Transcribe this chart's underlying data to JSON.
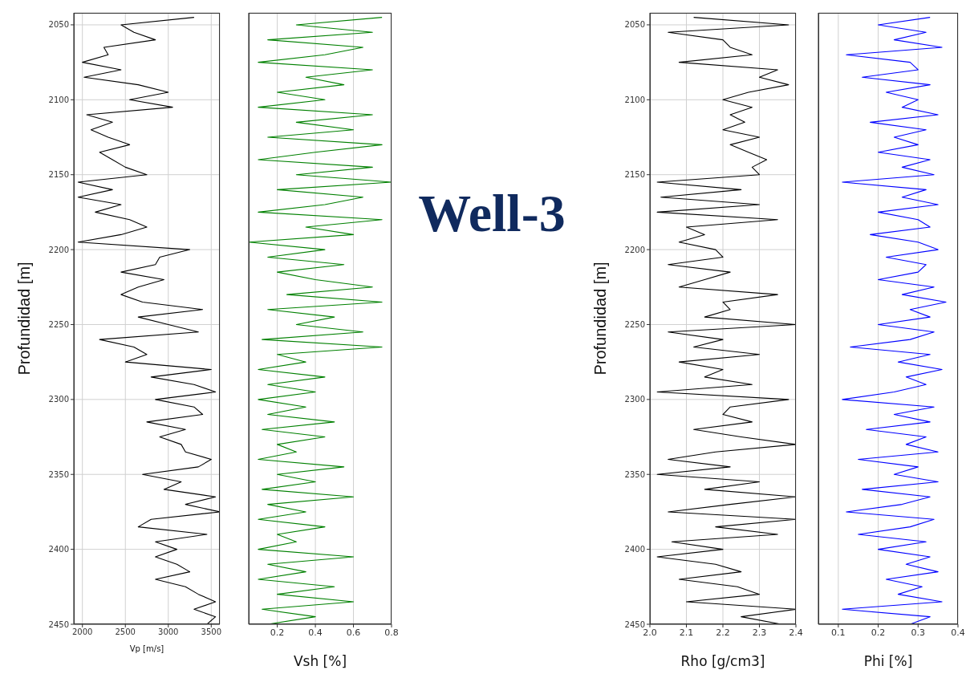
{
  "chart_data": [
    {
      "type": "line",
      "orientation": "horizontal",
      "xlabel": "Vp [m/s]",
      "ylabel": "Profundidad [m]",
      "xlim": [
        1900,
        3600
      ],
      "xticks": [
        2000,
        2500,
        3000,
        3500
      ],
      "ylim": [
        2450,
        2042
      ],
      "yticks": [
        2050,
        2100,
        2150,
        2200,
        2250,
        2300,
        2350,
        2400,
        2450
      ],
      "grid": true,
      "x": [
        2045,
        2050,
        2055,
        2060,
        2065,
        2070,
        2075,
        2080,
        2085,
        2090,
        2095,
        2100,
        2105,
        2110,
        2115,
        2120,
        2125,
        2130,
        2135,
        2140,
        2145,
        2150,
        2155,
        2160,
        2165,
        2170,
        2175,
        2180,
        2185,
        2190,
        2195,
        2200,
        2205,
        2210,
        2215,
        2220,
        2225,
        2230,
        2235,
        2240,
        2245,
        2250,
        2255,
        2260,
        2265,
        2270,
        2275,
        2280,
        2285,
        2290,
        2295,
        2300,
        2305,
        2310,
        2315,
        2320,
        2325,
        2330,
        2335,
        2340,
        2345,
        2350,
        2355,
        2360,
        2365,
        2370,
        2375,
        2380,
        2385,
        2390,
        2395,
        2400,
        2405,
        2410,
        2415,
        2420,
        2425,
        2430,
        2435,
        2440,
        2445,
        2450
      ],
      "series": [
        {
          "color": "#000000",
          "values": [
            3300,
            2450,
            2600,
            2850,
            2250,
            2300,
            2000,
            2450,
            2020,
            2650,
            3000,
            2550,
            3050,
            2050,
            2350,
            2100,
            2300,
            2550,
            2200,
            2350,
            2500,
            2750,
            1950,
            2350,
            1950,
            2450,
            2150,
            2550,
            2750,
            2450,
            1950,
            3250,
            2900,
            2850,
            2450,
            2950,
            2650,
            2450,
            2700,
            3400,
            2650,
            3000,
            3350,
            2200,
            2600,
            2750,
            2500,
            3500,
            2800,
            3300,
            3550,
            2850,
            3300,
            3400,
            2750,
            3200,
            2900,
            3150,
            3200,
            3500,
            3350,
            2700,
            3150,
            2950,
            3550,
            3200,
            3600,
            2800,
            2650,
            3450,
            2850,
            3100,
            2850,
            3100,
            3250,
            2850,
            3200,
            3350,
            3550,
            3300,
            3550,
            3450
          ]
        }
      ]
    },
    {
      "type": "line",
      "orientation": "horizontal",
      "xlabel": "Vsh [%]",
      "xlim": [
        0.05,
        0.8
      ],
      "xticks": [
        0.2,
        0.4,
        0.6,
        0.8
      ],
      "ylim": [
        2450,
        2042
      ],
      "yticks": [
        2050,
        2100,
        2150,
        2200,
        2250,
        2300,
        2350,
        2400,
        2450
      ],
      "grid": true,
      "tick_labels": "x",
      "x": [
        2045,
        2050,
        2055,
        2060,
        2065,
        2070,
        2075,
        2080,
        2085,
        2090,
        2095,
        2100,
        2105,
        2110,
        2115,
        2120,
        2125,
        2130,
        2135,
        2140,
        2145,
        2150,
        2155,
        2160,
        2165,
        2170,
        2175,
        2180,
        2185,
        2190,
        2195,
        2200,
        2205,
        2210,
        2215,
        2220,
        2225,
        2230,
        2235,
        2240,
        2245,
        2250,
        2255,
        2260,
        2265,
        2270,
        2275,
        2280,
        2285,
        2290,
        2295,
        2300,
        2305,
        2310,
        2315,
        2320,
        2325,
        2330,
        2335,
        2340,
        2345,
        2350,
        2355,
        2360,
        2365,
        2370,
        2375,
        2380,
        2385,
        2390,
        2395,
        2400,
        2405,
        2410,
        2415,
        2420,
        2425,
        2430,
        2435,
        2440,
        2445,
        2450
      ],
      "series": [
        {
          "color": "#008000",
          "values": [
            0.75,
            0.3,
            0.7,
            0.15,
            0.65,
            0.45,
            0.1,
            0.7,
            0.35,
            0.55,
            0.2,
            0.45,
            0.1,
            0.7,
            0.3,
            0.6,
            0.15,
            0.75,
            0.4,
            0.1,
            0.7,
            0.3,
            0.8,
            0.2,
            0.65,
            0.45,
            0.1,
            0.75,
            0.35,
            0.6,
            0.05,
            0.45,
            0.15,
            0.55,
            0.2,
            0.4,
            0.7,
            0.25,
            0.75,
            0.15,
            0.5,
            0.3,
            0.65,
            0.12,
            0.75,
            0.2,
            0.35,
            0.1,
            0.45,
            0.15,
            0.4,
            0.1,
            0.35,
            0.15,
            0.5,
            0.12,
            0.45,
            0.2,
            0.3,
            0.1,
            0.55,
            0.2,
            0.4,
            0.12,
            0.6,
            0.15,
            0.35,
            0.1,
            0.45,
            0.2,
            0.3,
            0.1,
            0.6,
            0.15,
            0.35,
            0.1,
            0.5,
            0.2,
            0.6,
            0.12,
            0.4,
            0.15
          ]
        }
      ]
    },
    {
      "type": "other",
      "title": "Well-3"
    },
    {
      "type": "line",
      "orientation": "horizontal",
      "xlabel": "Rho [g/cm3]",
      "ylabel": "Profundidad [m]",
      "xlim": [
        2.0,
        2.4
      ],
      "xticks": [
        {
          "value": 2,
          "label": "2.0"
        },
        2.1,
        2.2,
        2.3,
        2.4
      ],
      "ylim": [
        2450,
        2042
      ],
      "yticks": [
        2050,
        2100,
        2150,
        2200,
        2250,
        2300,
        2350,
        2400,
        2450
      ],
      "grid": true,
      "x": [
        2045,
        2050,
        2055,
        2060,
        2065,
        2070,
        2075,
        2080,
        2085,
        2090,
        2095,
        2100,
        2105,
        2110,
        2115,
        2120,
        2125,
        2130,
        2135,
        2140,
        2145,
        2150,
        2155,
        2160,
        2165,
        2170,
        2175,
        2180,
        2185,
        2190,
        2195,
        2200,
        2205,
        2210,
        2215,
        2220,
        2225,
        2230,
        2235,
        2240,
        2245,
        2250,
        2255,
        2260,
        2265,
        2270,
        2275,
        2280,
        2285,
        2290,
        2295,
        2300,
        2305,
        2310,
        2315,
        2320,
        2325,
        2330,
        2335,
        2340,
        2345,
        2350,
        2355,
        2360,
        2365,
        2370,
        2375,
        2380,
        2385,
        2390,
        2395,
        2400,
        2405,
        2410,
        2415,
        2420,
        2425,
        2430,
        2435,
        2440,
        2445,
        2450
      ],
      "series": [
        {
          "color": "#000000",
          "values": [
            2.12,
            2.38,
            2.05,
            2.2,
            2.22,
            2.28,
            2.08,
            2.35,
            2.3,
            2.38,
            2.27,
            2.2,
            2.28,
            2.22,
            2.26,
            2.2,
            2.3,
            2.22,
            2.27,
            2.32,
            2.28,
            2.3,
            2.02,
            2.25,
            2.03,
            2.3,
            2.02,
            2.35,
            2.1,
            2.15,
            2.08,
            2.18,
            2.2,
            2.05,
            2.22,
            2.15,
            2.08,
            2.35,
            2.2,
            2.22,
            2.15,
            2.4,
            2.05,
            2.2,
            2.12,
            2.3,
            2.08,
            2.2,
            2.15,
            2.28,
            2.02,
            2.38,
            2.22,
            2.2,
            2.28,
            2.12,
            2.25,
            2.4,
            2.18,
            2.05,
            2.22,
            2.02,
            2.3,
            2.15,
            2.4,
            2.22,
            2.05,
            2.4,
            2.18,
            2.35,
            2.06,
            2.2,
            2.02,
            2.18,
            2.25,
            2.08,
            2.24,
            2.3,
            2.1,
            2.4,
            2.25,
            2.36
          ]
        }
      ]
    },
    {
      "type": "line",
      "orientation": "horizontal",
      "xlabel": "Phi [%]",
      "xlim": [
        0.05,
        0.4
      ],
      "xticks": [
        0.1,
        0.2,
        0.3,
        0.4
      ],
      "ylim": [
        2450,
        2042
      ],
      "yticks": [
        2050,
        2100,
        2150,
        2200,
        2250,
        2300,
        2350,
        2400,
        2450
      ],
      "grid": true,
      "tick_labels": "x",
      "x": [
        2045,
        2050,
        2055,
        2060,
        2065,
        2070,
        2075,
        2080,
        2085,
        2090,
        2095,
        2100,
        2105,
        2110,
        2115,
        2120,
        2125,
        2130,
        2135,
        2140,
        2145,
        2150,
        2155,
        2160,
        2165,
        2170,
        2175,
        2180,
        2185,
        2190,
        2195,
        2200,
        2205,
        2210,
        2215,
        2220,
        2225,
        2230,
        2235,
        2240,
        2245,
        2250,
        2255,
        2260,
        2265,
        2270,
        2275,
        2280,
        2285,
        2290,
        2295,
        2300,
        2305,
        2310,
        2315,
        2320,
        2325,
        2330,
        2335,
        2340,
        2345,
        2350,
        2355,
        2360,
        2365,
        2370,
        2375,
        2380,
        2385,
        2390,
        2395,
        2400,
        2405,
        2410,
        2415,
        2420,
        2425,
        2430,
        2435,
        2440,
        2445,
        2450
      ],
      "series": [
        {
          "color": "#0000ff",
          "values": [
            0.33,
            0.2,
            0.32,
            0.24,
            0.36,
            0.12,
            0.28,
            0.3,
            0.16,
            0.33,
            0.22,
            0.3,
            0.26,
            0.35,
            0.18,
            0.32,
            0.24,
            0.3,
            0.2,
            0.33,
            0.26,
            0.34,
            0.11,
            0.32,
            0.26,
            0.35,
            0.2,
            0.3,
            0.33,
            0.18,
            0.3,
            0.35,
            0.22,
            0.32,
            0.3,
            0.2,
            0.34,
            0.26,
            0.37,
            0.28,
            0.33,
            0.2,
            0.34,
            0.28,
            0.13,
            0.33,
            0.25,
            0.36,
            0.27,
            0.32,
            0.24,
            0.11,
            0.34,
            0.24,
            0.33,
            0.17,
            0.32,
            0.27,
            0.35,
            0.15,
            0.3,
            0.24,
            0.35,
            0.16,
            0.33,
            0.26,
            0.12,
            0.34,
            0.28,
            0.15,
            0.32,
            0.2,
            0.33,
            0.27,
            0.35,
            0.22,
            0.31,
            0.25,
            0.36,
            0.11,
            0.33,
            0.28
          ]
        }
      ]
    }
  ]
}
